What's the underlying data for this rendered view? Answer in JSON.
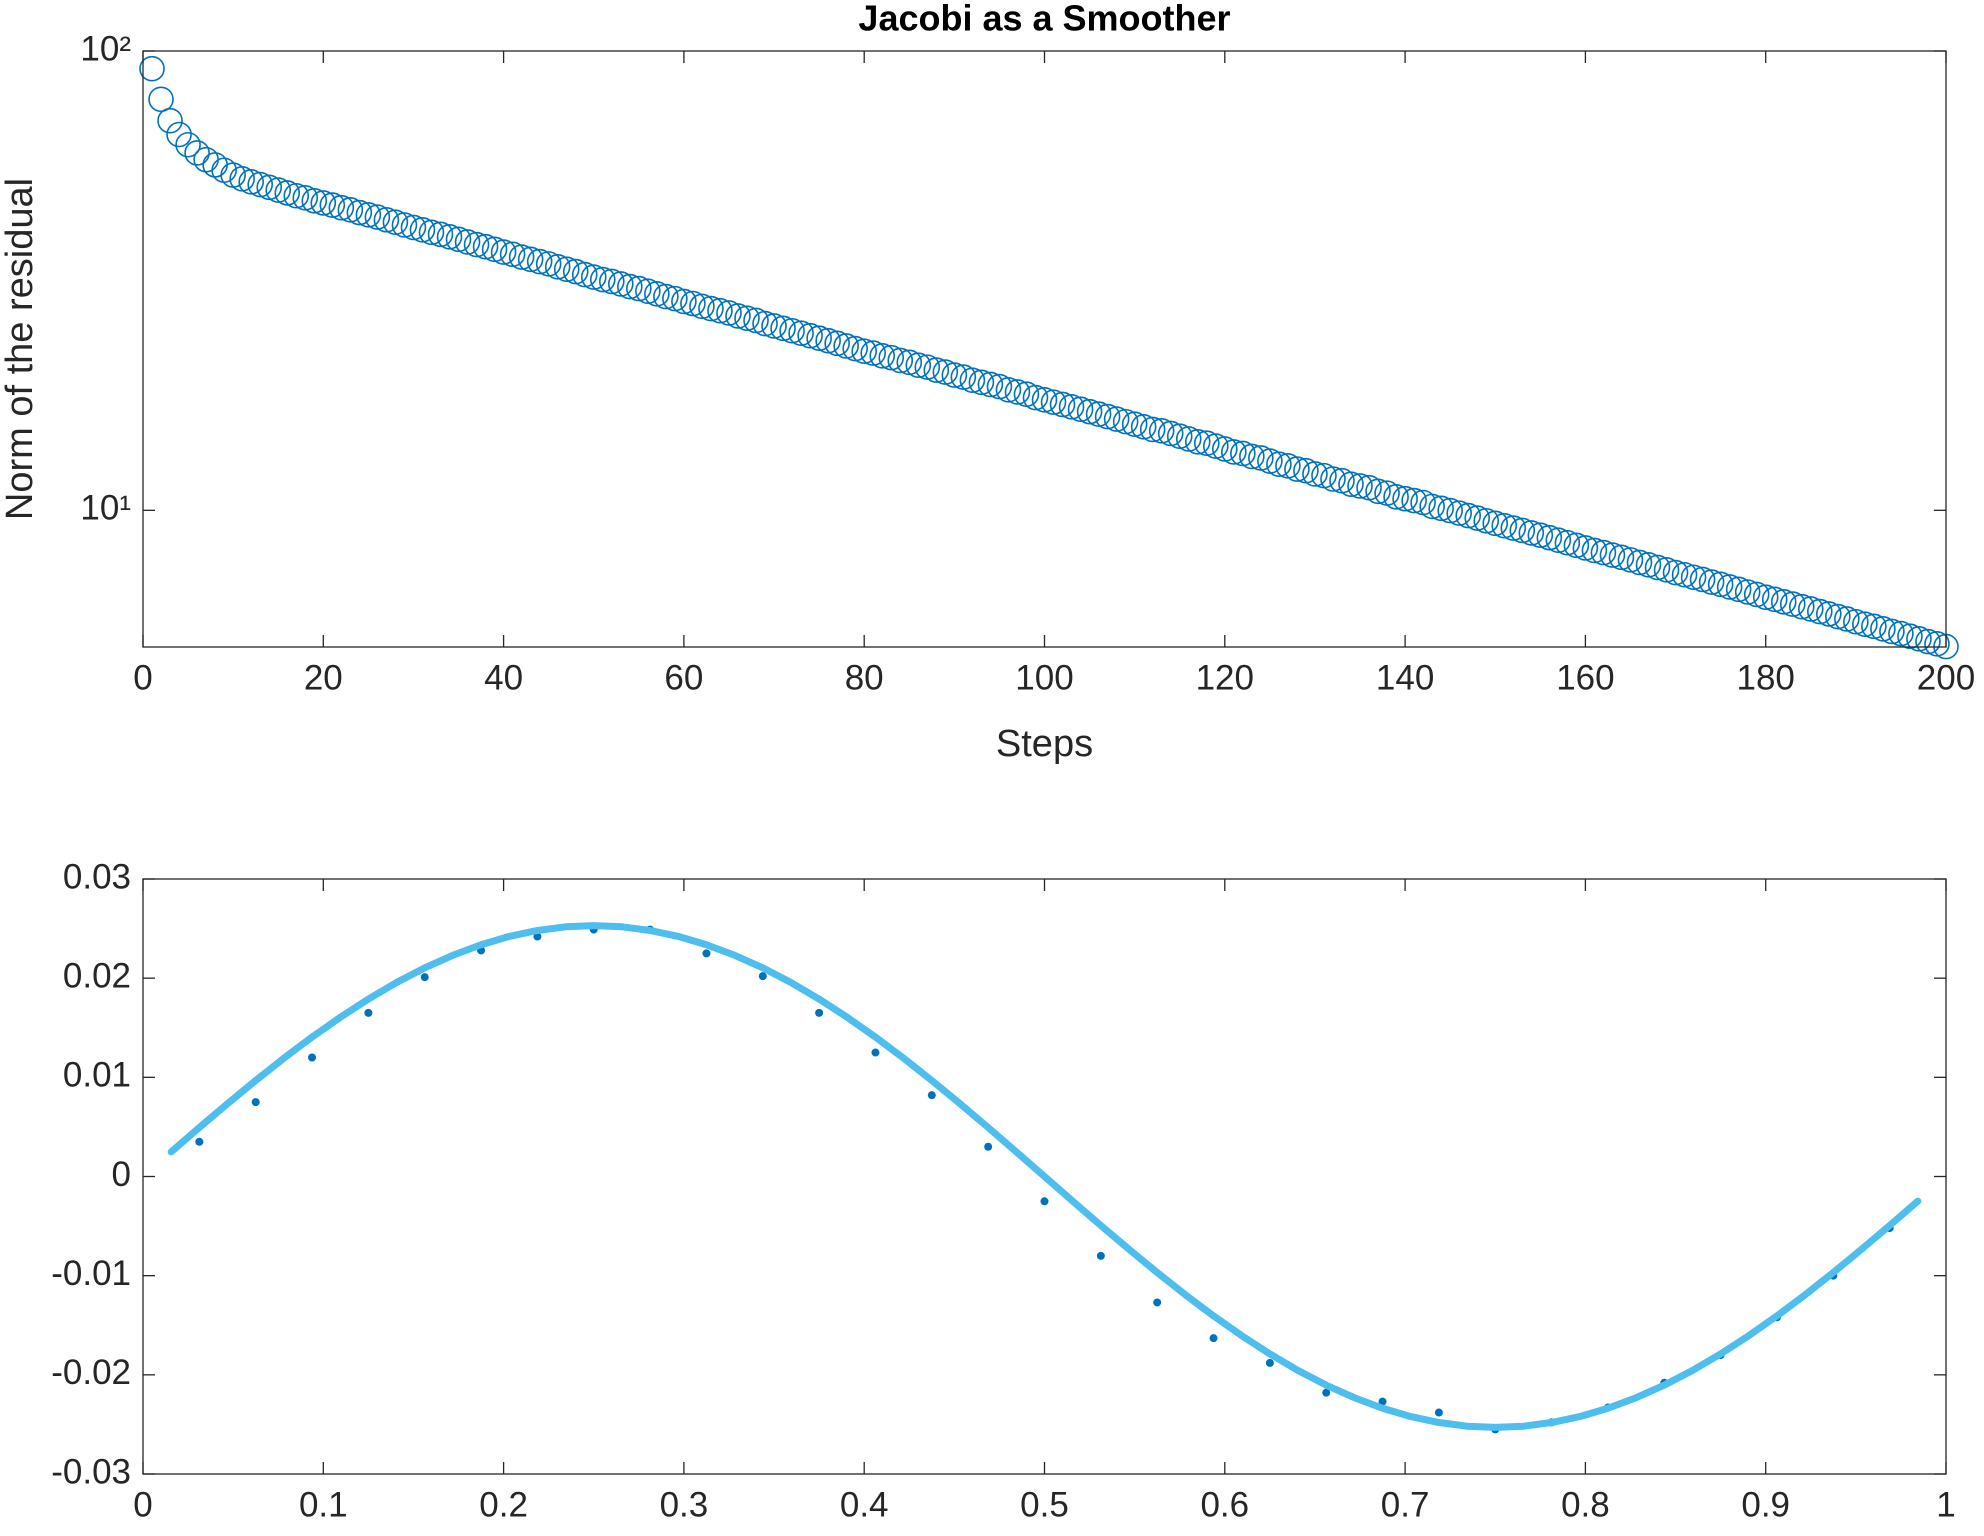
{
  "chart_data": [
    {
      "type": "scatter",
      "title": "Jacobi as a Smoother",
      "x_label": "Steps",
      "y_label": "Norm of the residual",
      "log_y": true,
      "marker": "circle",
      "x": [
        1,
        2,
        3,
        4,
        5,
        6,
        7,
        8,
        9,
        10,
        11,
        12,
        13,
        14,
        15,
        16,
        17,
        18,
        19,
        20,
        21,
        22,
        23,
        24,
        25,
        26,
        27,
        28,
        29,
        30,
        31,
        32,
        33,
        34,
        35,
        36,
        37,
        38,
        39,
        40,
        41,
        42,
        43,
        44,
        45,
        46,
        47,
        48,
        49,
        50,
        51,
        52,
        53,
        54,
        55,
        56,
        57,
        58,
        59,
        60,
        61,
        62,
        63,
        64,
        65,
        66,
        67,
        68,
        69,
        70,
        71,
        72,
        73,
        74,
        75,
        76,
        77,
        78,
        79,
        80,
        81,
        82,
        83,
        84,
        85,
        86,
        87,
        88,
        89,
        90,
        91,
        92,
        93,
        94,
        95,
        96,
        97,
        98,
        99,
        100,
        101,
        102,
        103,
        104,
        105,
        106,
        107,
        108,
        109,
        110,
        111,
        112,
        113,
        114,
        115,
        116,
        117,
        118,
        119,
        120,
        121,
        122,
        123,
        124,
        125,
        126,
        127,
        128,
        129,
        130,
        131,
        132,
        133,
        134,
        135,
        136,
        137,
        138,
        139,
        140,
        141,
        142,
        143,
        144,
        145,
        146,
        147,
        148,
        149,
        150,
        151,
        152,
        153,
        154,
        155,
        156,
        157,
        158,
        159,
        160,
        161,
        162,
        163,
        164,
        165,
        166,
        167,
        168,
        169,
        170,
        171,
        172,
        173,
        174,
        175,
        176,
        177,
        178,
        179,
        180,
        181,
        182,
        183,
        184,
        185,
        186,
        187,
        188,
        189,
        190,
        191,
        192,
        193,
        194,
        195,
        196,
        197,
        198,
        199,
        200
      ],
      "series": [
        {
          "color": "#0072bd",
          "values": [
            91.5,
            78.5,
            70.5,
            65.8,
            62.5,
            60.0,
            58.0,
            56.5,
            55.0,
            53.7,
            52.7,
            51.9,
            51.2,
            50.5,
            49.8,
            49.1,
            48.4,
            47.9,
            47.2,
            46.7,
            46.2,
            45.6,
            45.1,
            44.5,
            44.0,
            43.5,
            42.9,
            42.4,
            41.8,
            41.3,
            40.8,
            40.3,
            39.9,
            39.4,
            38.9,
            38.4,
            37.9,
            37.5,
            37.0,
            36.5,
            36.1,
            35.6,
            35.2,
            34.8,
            34.4,
            33.9,
            33.5,
            33.1,
            32.6,
            32.2,
            31.8,
            31.5,
            31.1,
            30.7,
            30.4,
            30.0,
            29.6,
            29.2,
            28.9,
            28.5,
            28.2,
            27.8,
            27.5,
            27.2,
            26.9,
            26.5,
            26.2,
            25.9,
            25.5,
            25.2,
            24.9,
            24.6,
            24.3,
            24.0,
            23.7,
            23.4,
            23.1,
            22.8,
            22.5,
            22.2,
            22.0,
            21.7,
            21.5,
            21.2,
            21.0,
            20.7,
            20.5,
            20.2,
            20.0,
            19.7,
            19.5,
            19.2,
            19.0,
            18.8,
            18.6,
            18.3,
            18.1,
            17.9,
            17.6,
            17.4,
            17.2,
            17.0,
            16.8,
            16.6,
            16.4,
            16.2,
            16.0,
            15.8,
            15.6,
            15.4,
            15.2,
            15.0,
            14.9,
            14.7,
            14.5,
            14.3,
            14.1,
            14.0,
            13.8,
            13.6,
            13.4,
            13.3,
            13.1,
            13.0,
            12.8,
            12.6,
            12.5,
            12.3,
            12.2,
            12.0,
            11.9,
            11.7,
            11.6,
            11.4,
            11.3,
            11.2,
            11.0,
            10.9,
            10.7,
            10.6,
            10.5,
            10.4,
            10.2,
            10.1,
            9.99,
            9.86,
            9.74,
            9.62,
            9.49,
            9.37,
            9.26,
            9.15,
            9.04,
            8.93,
            8.83,
            8.72,
            8.61,
            8.5,
            8.39,
            8.28,
            8.18,
            8.09,
            7.99,
            7.9,
            7.8,
            7.7,
            7.61,
            7.51,
            7.42,
            7.32,
            7.24,
            7.15,
            7.07,
            6.98,
            6.9,
            6.81,
            6.73,
            6.64,
            6.56,
            6.47,
            6.4,
            6.32,
            6.25,
            6.17,
            6.1,
            6.02,
            5.95,
            5.87,
            5.8,
            5.72,
            5.65,
            5.59,
            5.52,
            5.45,
            5.39,
            5.32,
            5.25,
            5.18,
            5.12,
            5.05
          ]
        }
      ],
      "xlim": [
        0,
        200
      ],
      "xticks": [
        0,
        20,
        40,
        60,
        80,
        100,
        120,
        140,
        160,
        180,
        200
      ],
      "ylim": [
        5.04,
        100
      ],
      "yticks": [
        {
          "value": 10,
          "label": "10¹"
        },
        {
          "value": 100,
          "label": "10²"
        }
      ]
    },
    {
      "type": "line",
      "series": [
        {
          "color": "#0072bd",
          "marker": "dot",
          "x": [
            0.03125,
            0.0625,
            0.09375,
            0.125,
            0.15625,
            0.1875,
            0.21875,
            0.25,
            0.28125,
            0.3125,
            0.34375,
            0.375,
            0.40625,
            0.4375,
            0.46875,
            0.5,
            0.53125,
            0.5625,
            0.59375,
            0.625,
            0.65625,
            0.6875,
            0.71875,
            0.75,
            0.78125,
            0.8125,
            0.84375,
            0.875,
            0.90625,
            0.9375,
            0.96875
          ],
          "values": [
            0.0035,
            0.0075,
            0.012,
            0.0165,
            0.0201,
            0.0228,
            0.0242,
            0.0249,
            0.0249,
            0.0225,
            0.0202,
            0.0165,
            0.0125,
            0.0082,
            0.003,
            -0.0025,
            -0.008,
            -0.0127,
            -0.0163,
            -0.0188,
            -0.0218,
            -0.0227,
            -0.0238,
            -0.0255,
            -0.0248,
            -0.0233,
            -0.0208,
            -0.018,
            -0.0142,
            -0.01,
            -0.0052
          ]
        },
        {
          "color": "#4dbeee",
          "marker": "none",
          "x": [
            0.015625,
            0.03125,
            0.046875,
            0.0625,
            0.078125,
            0.09375,
            0.109375,
            0.125,
            0.140625,
            0.15625,
            0.171875,
            0.1875,
            0.203125,
            0.21875,
            0.234375,
            0.25,
            0.265625,
            0.28125,
            0.296875,
            0.3125,
            0.328125,
            0.34375,
            0.359375,
            0.375,
            0.390625,
            0.40625,
            0.421875,
            0.4375,
            0.453125,
            0.46875,
            0.484375,
            0.5,
            0.515625,
            0.53125,
            0.546875,
            0.5625,
            0.578125,
            0.59375,
            0.609375,
            0.625,
            0.640625,
            0.65625,
            0.671875,
            0.6875,
            0.703125,
            0.71875,
            0.734375,
            0.75,
            0.765625,
            0.78125,
            0.796875,
            0.8125,
            0.828125,
            0.84375,
            0.859375,
            0.875,
            0.890625,
            0.90625,
            0.921875,
            0.9375,
            0.953125,
            0.96875,
            0.984375
          ],
          "values": [
            0.00248,
            0.00494,
            0.00734,
            0.00968,
            0.01193,
            0.01406,
            0.01605,
            0.01789,
            0.01956,
            0.02104,
            0.02231,
            0.02337,
            0.02421,
            0.02481,
            0.02518,
            0.0253,
            0.02518,
            0.02481,
            0.02421,
            0.02337,
            0.02231,
            0.02104,
            0.01956,
            0.01789,
            0.01605,
            0.01406,
            0.01193,
            0.00968,
            0.00734,
            0.00494,
            0.00248,
            0,
            -0.00248,
            -0.00494,
            -0.00734,
            -0.00968,
            -0.01193,
            -0.01406,
            -0.01605,
            -0.01789,
            -0.01956,
            -0.02104,
            -0.02231,
            -0.02337,
            -0.02421,
            -0.02481,
            -0.02518,
            -0.0253,
            -0.02518,
            -0.02481,
            -0.02421,
            -0.02337,
            -0.02231,
            -0.02104,
            -0.01956,
            -0.01789,
            -0.01605,
            -0.01406,
            -0.01193,
            -0.00968,
            -0.00734,
            -0.00494,
            -0.00248
          ]
        }
      ],
      "xlim": [
        0,
        1
      ],
      "xticks": [
        0,
        0.1,
        0.2,
        0.3,
        0.4,
        0.5,
        0.6,
        0.7,
        0.8,
        0.9,
        1
      ],
      "ylim": [
        -0.03,
        0.03
      ],
      "yticks": [
        -0.03,
        -0.02,
        -0.01,
        0,
        0.01,
        0.02,
        0.03
      ]
    }
  ]
}
